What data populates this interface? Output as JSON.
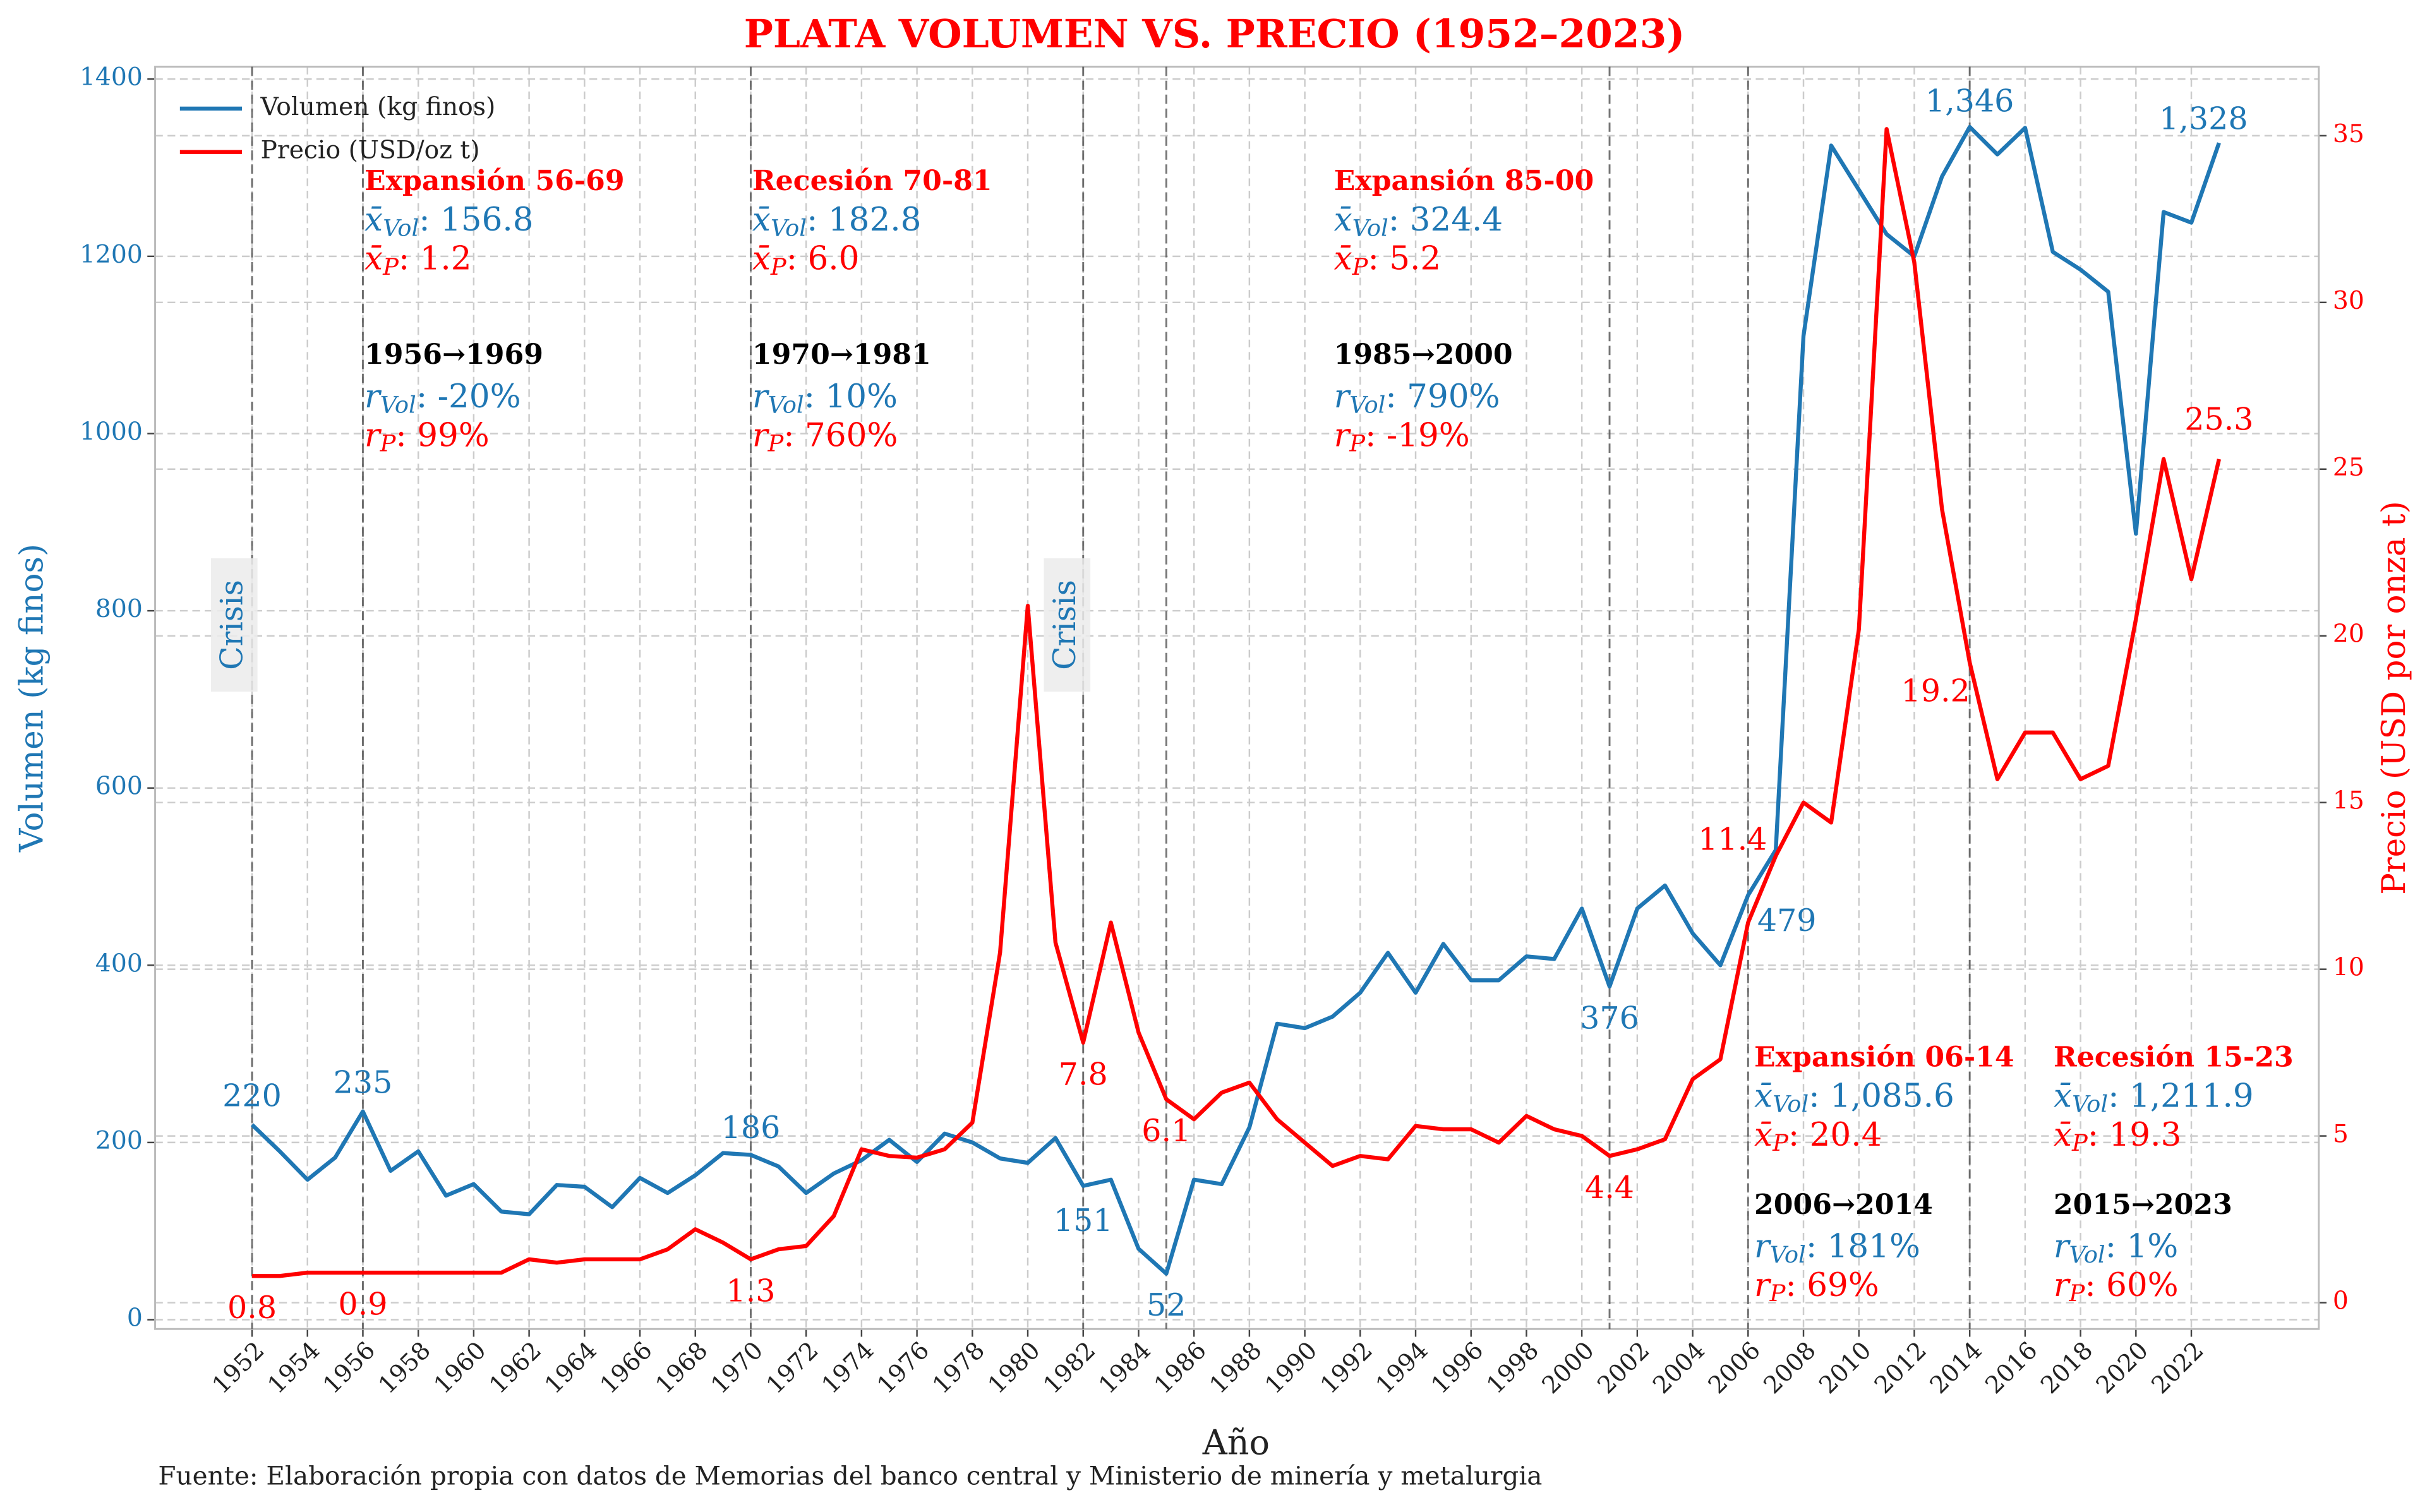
{
  "chart_data": {
    "type": "line",
    "title": "PLATA VOLUMEN VS. PRECIO (1952–2023)",
    "x_label": "Año",
    "y_label": "Volumen (kg finos)",
    "y2_label": "Precio (USD por onza t)",
    "x": [
      1952,
      1953,
      1954,
      1955,
      1956,
      1957,
      1958,
      1959,
      1960,
      1961,
      1962,
      1963,
      1964,
      1965,
      1966,
      1967,
      1968,
      1969,
      1970,
      1971,
      1972,
      1973,
      1974,
      1975,
      1976,
      1977,
      1978,
      1979,
      1980,
      1981,
      1982,
      1983,
      1984,
      1985,
      1986,
      1987,
      1988,
      1989,
      1990,
      1991,
      1992,
      1993,
      1994,
      1995,
      1996,
      1997,
      1998,
      1999,
      2000,
      2001,
      2002,
      2003,
      2004,
      2005,
      2006,
      2007,
      2008,
      2009,
      2010,
      2011,
      2012,
      2013,
      2014,
      2015,
      2016,
      2017,
      2018,
      2019,
      2020,
      2021,
      2022,
      2023
    ],
    "xlim": [
      1948.5,
      2026.6
    ],
    "xticks": [
      1952,
      1954,
      1956,
      1958,
      1960,
      1962,
      1964,
      1966,
      1968,
      1970,
      1972,
      1974,
      1976,
      1978,
      1980,
      1982,
      1984,
      1986,
      1988,
      1990,
      1992,
      1994,
      1996,
      1998,
      2000,
      2002,
      2004,
      2006,
      2008,
      2010,
      2012,
      2014,
      2016,
      2018,
      2020,
      2022
    ],
    "ylim": [
      -10.5,
      1414
    ],
    "yticks": [
      0,
      200,
      400,
      600,
      800,
      1000,
      1200,
      1400
    ],
    "y2lim": [
      -0.79,
      37.07
    ],
    "y2ticks": [
      0,
      5,
      10,
      15,
      20,
      25,
      30,
      35
    ],
    "grid": true,
    "legend": "upper left",
    "series": [
      {
        "name": "Volumen (kg finos)",
        "color": "#1f77b4",
        "values": [
          220,
          190,
          158,
          183,
          235,
          168,
          190,
          140,
          153,
          122,
          119,
          152,
          150,
          127,
          160,
          143,
          163,
          188,
          186,
          173,
          143,
          165,
          180,
          203,
          178,
          210,
          200,
          182,
          177,
          205,
          151,
          158,
          80,
          52,
          158,
          153,
          217,
          334,
          329,
          342,
          369,
          414,
          369,
          424,
          383,
          383,
          410,
          407,
          464,
          376,
          464,
          490,
          436,
          400,
          479,
          530,
          1110,
          1325,
          1275,
          1225,
          1200,
          1290,
          1346,
          1315,
          1345,
          1205,
          1185,
          1160,
          887,
          1250,
          1238,
          1328
        ],
        "value_labels": [
          "220",
          null,
          null,
          null,
          "235",
          null,
          null,
          null,
          null,
          null,
          null,
          null,
          null,
          null,
          null,
          null,
          null,
          null,
          "186",
          null,
          null,
          null,
          null,
          null,
          null,
          null,
          null,
          null,
          null,
          null,
          "151",
          null,
          null,
          "52",
          null,
          null,
          null,
          null,
          null,
          null,
          null,
          null,
          null,
          null,
          null,
          null,
          null,
          null,
          null,
          "376",
          null,
          null,
          null,
          null,
          "479",
          null,
          null,
          null,
          null,
          null,
          null,
          null,
          "1,346",
          null,
          null,
          null,
          null,
          null,
          null,
          null,
          null,
          "1,328"
        ]
      },
      {
        "name": "Precio (USD/oz t)",
        "color": "#ff0000",
        "axis": "y2",
        "values": [
          0.8,
          0.8,
          0.9,
          0.9,
          0.9,
          0.9,
          0.9,
          0.9,
          0.9,
          0.9,
          1.3,
          1.2,
          1.3,
          1.3,
          1.3,
          1.6,
          2.2,
          1.8,
          1.3,
          1.6,
          1.7,
          2.6,
          4.6,
          4.4,
          4.35,
          4.6,
          5.4,
          10.5,
          20.9,
          10.8,
          7.8,
          11.4,
          8.1,
          6.1,
          5.5,
          6.3,
          6.6,
          5.5,
          4.8,
          4.1,
          4.4,
          4.3,
          5.3,
          5.2,
          5.2,
          4.8,
          5.6,
          5.2,
          5.0,
          4.4,
          4.6,
          4.9,
          6.7,
          7.3,
          11.4,
          13.4,
          15.0,
          14.4,
          20.2,
          35.2,
          31.2,
          23.8,
          19.2,
          15.7,
          17.1,
          17.1,
          15.7,
          16.1,
          20.5,
          25.3,
          21.7,
          25.3
        ],
        "value_labels": [
          "0.8",
          null,
          null,
          null,
          "0.9",
          null,
          null,
          null,
          null,
          null,
          null,
          null,
          null,
          null,
          null,
          null,
          null,
          null,
          "1.3",
          null,
          null,
          null,
          null,
          null,
          null,
          null,
          null,
          null,
          null,
          null,
          "7.8",
          null,
          null,
          "6.1",
          null,
          null,
          null,
          null,
          null,
          null,
          null,
          null,
          null,
          null,
          null,
          null,
          null,
          null,
          null,
          "4.4",
          null,
          null,
          null,
          null,
          "11.4",
          null,
          null,
          null,
          null,
          null,
          null,
          null,
          "19.2",
          null,
          null,
          null,
          null,
          null,
          null,
          null,
          null,
          "25.3"
        ]
      }
    ],
    "vlines": [
      1952,
      1956,
      1970,
      1982,
      1985,
      2001,
      2006,
      2014
    ],
    "crisis_labels": [
      "Crisis",
      "Crisis"
    ],
    "stat_symbols": {
      "mean": "x̄",
      "r": "r",
      "vol": "Vol",
      "p": "P",
      "separator": ": "
    },
    "periods": [
      {
        "title": "Expansión 56-69",
        "mean_vol": "156.8",
        "mean_p": "1.2",
        "range": "1956→1969",
        "r_vol": "-20%",
        "r_p": "99%"
      },
      {
        "title": "Recesión 70-81",
        "mean_vol": "182.8",
        "mean_p": "6.0",
        "range": "1970→1981",
        "r_vol": "10%",
        "r_p": "760%"
      },
      {
        "title": "Expansión 85-00",
        "mean_vol": "324.4",
        "mean_p": "5.2",
        "range": "1985→2000",
        "r_vol": "790%",
        "r_p": "-19%"
      },
      {
        "title": "Expansión 06-14",
        "mean_vol": "1,085.6",
        "mean_p": "20.4",
        "range": "2006→2014",
        "r_vol": "181%",
        "r_p": "69%"
      },
      {
        "title": "Recesión 15-23",
        "mean_vol": "1,211.9",
        "mean_p": "19.3",
        "range": "2015→2023",
        "r_vol": "1%",
        "r_p": "60%"
      }
    ],
    "source": "Fuente: Elaboración propia con datos de Memorias del banco central y Ministerio de minería y metalurgia"
  }
}
